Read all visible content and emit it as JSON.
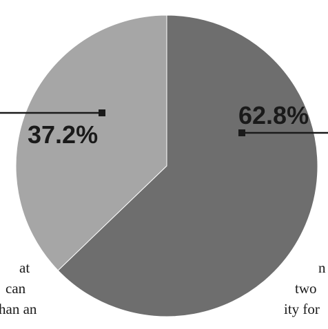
{
  "chart_data": {
    "type": "pie",
    "title": "",
    "slices": [
      {
        "label": "62.8%",
        "value": 62.8,
        "color": "#6e6e6e"
      },
      {
        "label": "37.2%",
        "value": 37.2,
        "color": "#a6a6a6"
      }
    ],
    "start_angle_deg": 90,
    "direction": "clockwise",
    "label_color": "#1a1a1a",
    "leader_color": "#1a1a1a"
  },
  "side_text": {
    "left": [
      "at",
      "can",
      "han an"
    ],
    "right": [
      "n",
      "two",
      "ity for"
    ]
  }
}
